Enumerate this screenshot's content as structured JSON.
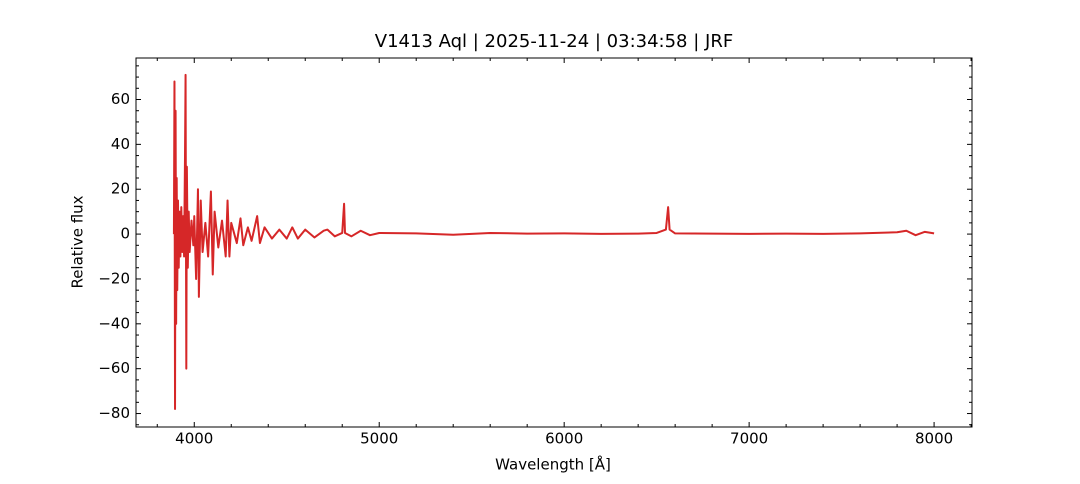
{
  "chart_data": {
    "type": "line",
    "title": "V1413 Aql | 2025-11-24 | 03:34:58 | JRF",
    "xlabel": "Wavelength [Å]",
    "ylabel": "Relative flux",
    "xlim": [
      3685,
      8205
    ],
    "ylim": [
      -86,
      78.5
    ],
    "xticks": [
      4000,
      5000,
      6000,
      7000,
      8000
    ],
    "yticks": [
      {
        "value": -80,
        "label": "−80"
      },
      {
        "value": -60,
        "label": "−60"
      },
      {
        "value": -40,
        "label": "−40"
      },
      {
        "value": -20,
        "label": "−20"
      },
      0,
      20,
      40,
      60
    ],
    "xminorticks": [
      3800,
      4200,
      4400,
      4600,
      4800,
      5200,
      5400,
      5600,
      5800,
      6200,
      6400,
      6600,
      6800,
      7200,
      7400,
      7600,
      7800,
      8200
    ],
    "yminorticks": [
      -85,
      -75,
      -70,
      -65,
      -55,
      -50,
      -45,
      -35,
      -30,
      -25,
      -15,
      -10,
      -5,
      5,
      10,
      15,
      25,
      30,
      35,
      45,
      50,
      55,
      65,
      70,
      75
    ],
    "series": [
      {
        "color": "#d62728",
        "x": [
          3890,
          3893,
          3896,
          3899,
          3902,
          3905,
          3908,
          3912,
          3916,
          3920,
          3925,
          3930,
          3935,
          3940,
          3945,
          3950,
          3953,
          3957,
          3960,
          3965,
          3970,
          3975,
          3985,
          3995,
          4000,
          4010,
          4020,
          4025,
          4035,
          4045,
          4060,
          4075,
          4090,
          4100,
          4110,
          4130,
          4150,
          4170,
          4180,
          4190,
          4200,
          4230,
          4250,
          4265,
          4290,
          4310,
          4340,
          4355,
          4380,
          4420,
          4460,
          4500,
          4530,
          4560,
          4600,
          4650,
          4700,
          4720,
          4760,
          4800,
          4810,
          4815,
          4850,
          4900,
          4950,
          5000,
          5200,
          5400,
          5600,
          5800,
          6000,
          6200,
          6400,
          6500,
          6550,
          6562,
          6570,
          6600,
          6800,
          7000,
          7200,
          7400,
          7600,
          7800,
          7850,
          7900,
          7950,
          8000
        ],
        "values": [
          0,
          68,
          -78,
          55,
          -40,
          25,
          -25,
          15,
          -15,
          10,
          -10,
          12,
          -8,
          8,
          -10,
          35,
          71,
          -60,
          30,
          -15,
          10,
          -8,
          6,
          -5,
          8,
          -20,
          20,
          -28,
          15,
          -8,
          5,
          -10,
          19,
          -18,
          10,
          -6,
          6,
          -10,
          15,
          -10,
          5,
          -4,
          7,
          -5,
          3,
          -3,
          8,
          -4,
          3,
          -2,
          2,
          -2,
          3,
          -2,
          2,
          -1.5,
          1.5,
          2,
          -1,
          0.5,
          13.5,
          0.5,
          -1,
          1.5,
          -0.5,
          0.5,
          0.3,
          -0.3,
          0.5,
          0.2,
          0.3,
          0.1,
          0.2,
          0.5,
          2,
          12,
          2,
          0.3,
          0.2,
          0.1,
          0.2,
          0.1,
          0.3,
          0.8,
          1.5,
          -0.5,
          1,
          0.3
        ]
      }
    ]
  }
}
